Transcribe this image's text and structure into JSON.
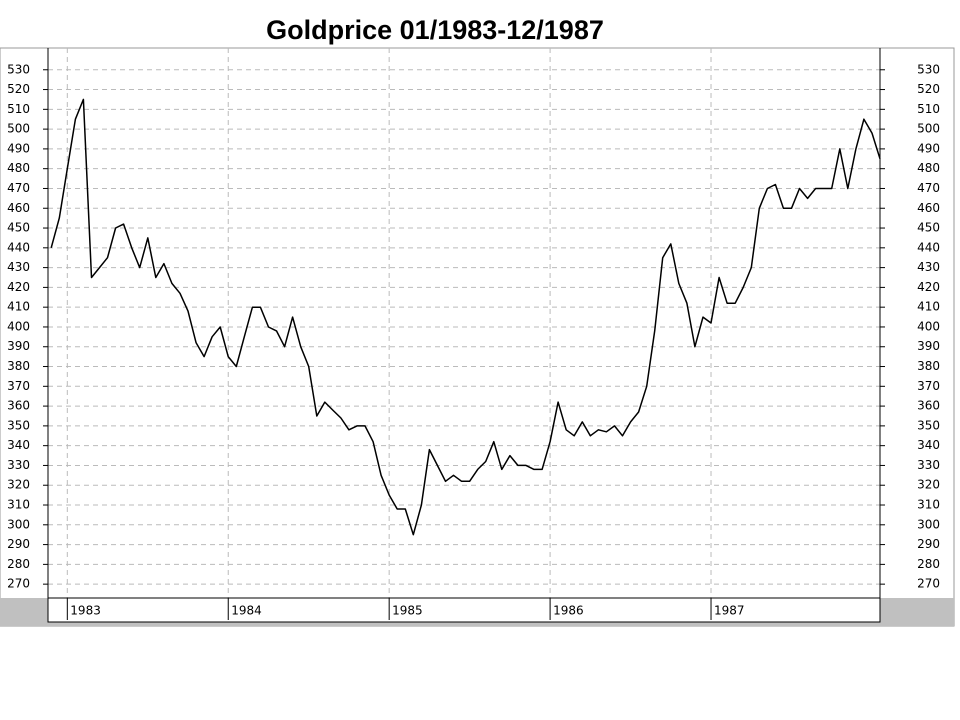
{
  "chart_data": {
    "type": "line",
    "title": "Goldprice  01/1983-12/1987",
    "x": [
      1982.9,
      1982.95,
      1983.0,
      1983.05,
      1983.1,
      1983.15,
      1983.2,
      1983.25,
      1983.3,
      1983.35,
      1983.4,
      1983.45,
      1983.5,
      1983.55,
      1983.6,
      1983.65,
      1983.7,
      1983.75,
      1983.8,
      1983.85,
      1983.9,
      1983.95,
      1984.0,
      1984.05,
      1984.1,
      1984.15,
      1984.2,
      1984.25,
      1984.3,
      1984.35,
      1984.4,
      1984.45,
      1984.5,
      1984.55,
      1984.6,
      1984.65,
      1984.7,
      1984.75,
      1984.8,
      1984.85,
      1984.9,
      1984.95,
      1985.0,
      1985.05,
      1985.1,
      1985.15,
      1985.2,
      1985.25,
      1985.3,
      1985.35,
      1985.4,
      1985.45,
      1985.5,
      1985.55,
      1985.6,
      1985.65,
      1985.7,
      1985.75,
      1985.8,
      1985.85,
      1985.9,
      1985.95,
      1986.0,
      1986.05,
      1986.1,
      1986.15,
      1986.2,
      1986.25,
      1986.3,
      1986.35,
      1986.4,
      1986.45,
      1986.5,
      1986.55,
      1986.6,
      1986.65,
      1986.7,
      1986.75,
      1986.8,
      1986.85,
      1986.9,
      1986.95,
      1987.0,
      1987.05,
      1987.1,
      1987.15,
      1987.2,
      1987.25,
      1987.3,
      1987.35,
      1987.4,
      1987.45,
      1987.5,
      1987.55,
      1987.6,
      1987.65,
      1987.7,
      1987.75,
      1987.8,
      1987.85,
      1987.9,
      1987.95,
      1988.0,
      1988.05
    ],
    "series": [
      {
        "name": "Goldprice",
        "color": "#000000",
        "values": [
          440,
          455,
          480,
          505,
          515,
          425,
          430,
          435,
          450,
          452,
          440,
          430,
          445,
          425,
          432,
          422,
          417,
          408,
          392,
          385,
          395,
          400,
          385,
          380,
          395,
          410,
          410,
          400,
          398,
          390,
          405,
          390,
          380,
          355,
          362,
          358,
          354,
          348,
          350,
          350,
          342,
          325,
          315,
          308,
          308,
          295,
          310,
          338,
          330,
          322,
          325,
          322,
          322,
          328,
          332,
          342,
          328,
          335,
          330,
          330,
          328,
          328,
          342,
          362,
          348,
          345,
          352,
          345,
          348,
          347,
          350,
          345,
          352,
          357,
          370,
          398,
          435,
          442,
          422,
          412,
          390,
          405,
          402,
          425,
          412,
          412,
          420,
          430,
          460,
          470,
          472,
          460,
          460,
          470,
          465,
          470,
          470,
          470,
          490,
          470,
          490,
          505,
          498,
          485
        ]
      }
    ],
    "xlim": [
      1982.88,
      1988.05
    ],
    "xticks": [
      1983,
      1984,
      1985,
      1986,
      1987
    ],
    "ylim": [
      263,
      541
    ],
    "yticks": [
      270,
      280,
      290,
      300,
      310,
      320,
      330,
      340,
      350,
      360,
      370,
      380,
      390,
      400,
      410,
      420,
      430,
      440,
      450,
      460,
      470,
      480,
      490,
      500,
      510,
      520,
      530
    ],
    "grid": true,
    "right_axis": true
  }
}
